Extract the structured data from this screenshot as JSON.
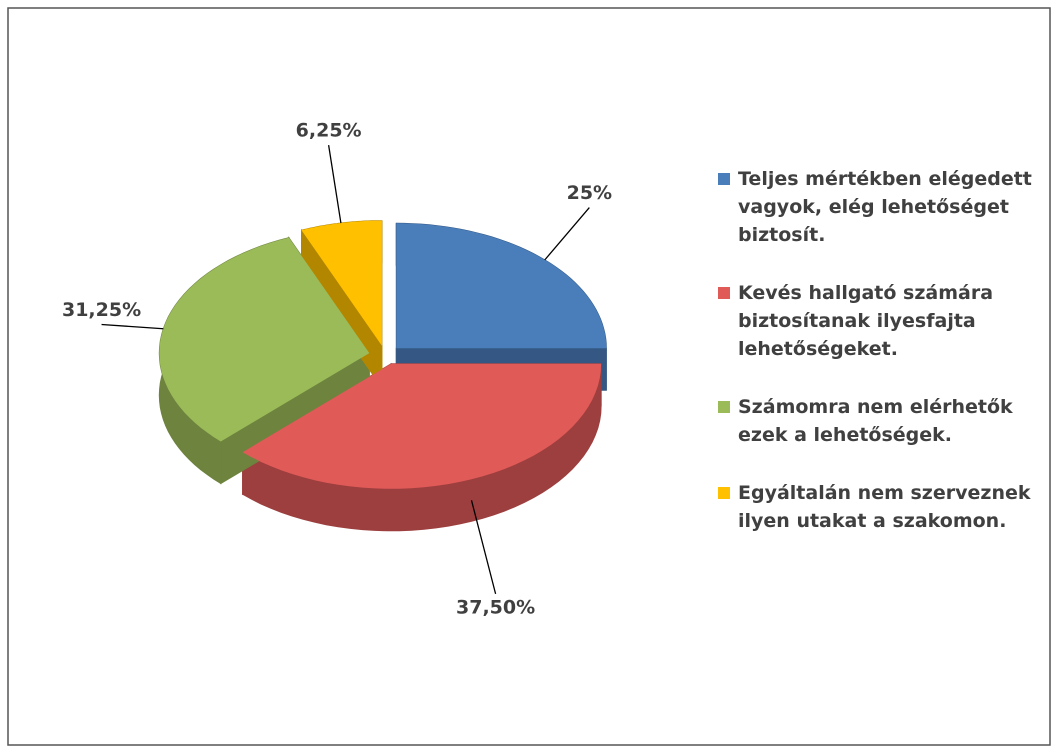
{
  "chart_data": {
    "type": "pie",
    "categories": [
      "Teljes mértékben elégedett vagyok, elég lehetőséget biztosít.",
      "Kevés hallgató számára biztosítanak ilyesfajta lehetőségeket.",
      "Számomra nem elérhetők ezek a lehetőségek.",
      "Egyáltalán nem szerveznek ilyen utakat a szakomon."
    ],
    "values": [
      25,
      37.5,
      31.25,
      6.25
    ],
    "value_labels": [
      "25%",
      "37,50%",
      "31,25%",
      "6,25%"
    ],
    "colors": [
      "#4a7ebb",
      "#e05a58",
      "#9bbb59",
      "#ffc000"
    ],
    "legend": "right"
  }
}
